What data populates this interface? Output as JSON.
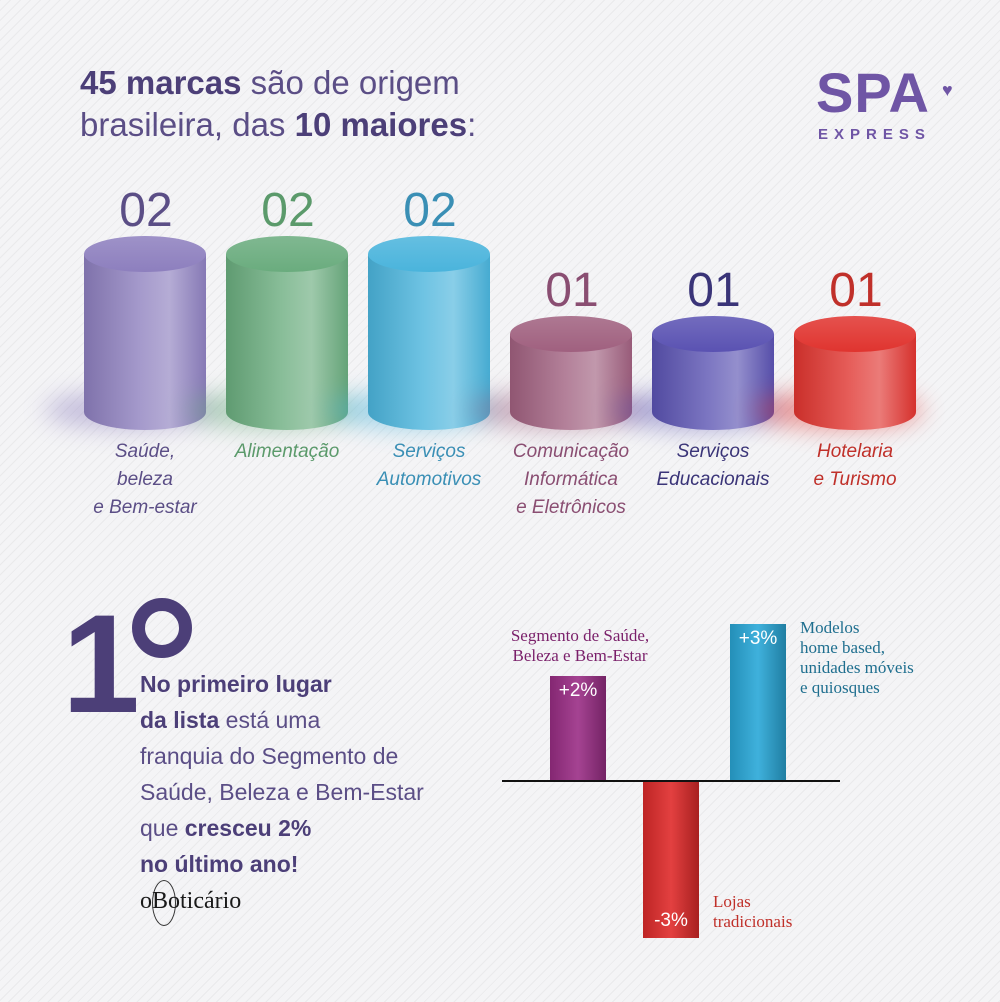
{
  "headline": {
    "line1_bold": "45 marcas",
    "line1_rest": " são de origem",
    "line2_pre": "brasileira, das ",
    "line2_bold": "10 maiores",
    "line2_post": ":"
  },
  "logo": {
    "main": "SPA",
    "sub": "EXPRESS",
    "heart": "♥"
  },
  "chart_data": [
    {
      "type": "bar",
      "categories": [
        "Saúde, beleza e Bem-estar",
        "Alimentação",
        "Serviços Automotivos",
        "Comunicação Informática e Eletrônicos",
        "Serviços Educacionais",
        "Hotelaria e Turismo"
      ],
      "values": [
        2,
        2,
        2,
        1,
        1,
        1
      ],
      "value_labels": [
        "02",
        "02",
        "02",
        "01",
        "01",
        "01"
      ],
      "category_lines": [
        [
          "Saúde,",
          "beleza",
          "e Bem-estar"
        ],
        [
          "Alimentação"
        ],
        [
          "Serviços",
          "Automotivos"
        ],
        [
          "Comunicação",
          "Informática",
          "e Eletrônicos"
        ],
        [
          "Serviços",
          "Educacionais"
        ],
        [
          "Hotelaria",
          "e Turismo"
        ]
      ],
      "colors": [
        "#8d7fbe",
        "#6aac7e",
        "#4ab4dc",
        "#a0607f",
        "#5a52b2",
        "#e0342f"
      ],
      "label_colors": [
        "#5b4e86",
        "#5b9a6b",
        "#3a8fb5",
        "#8a4e72",
        "#3a3478",
        "#c0302a"
      ]
    },
    {
      "type": "bar",
      "categories": [
        "Segmento de Saúde, Beleza e Bem-Estar",
        "Lojas tradicionais",
        "Modelos home based, unidades móveis e quiosques"
      ],
      "values": [
        2,
        -3,
        3
      ],
      "value_labels": [
        "+2%",
        "-3%",
        "+3%"
      ],
      "category_lines": [
        [
          "Segmento de Saúde,",
          "Beleza e Bem-Estar"
        ],
        [
          "Lojas",
          "tradicionais"
        ],
        [
          "Modelos",
          "home based,",
          "unidades móveis",
          "e quiosques"
        ]
      ],
      "colors": [
        "#9b2e86",
        "#e02b2b",
        "#2aa8d8"
      ],
      "label_colors": [
        "#7a1f6a",
        "#c0302a",
        "#1f6f8f"
      ]
    }
  ],
  "rank": {
    "number": "1",
    "bold1": "No primeiro lugar",
    "bold2": "da lista",
    "text2": " está uma",
    "text3": "franquia do Segmento de",
    "text4": "Saúde, Beleza e Bem-Estar",
    "text5": "que ",
    "bold5": "cresceu 2%",
    "bold6": "no último ano!",
    "brand": "oBoticário"
  }
}
